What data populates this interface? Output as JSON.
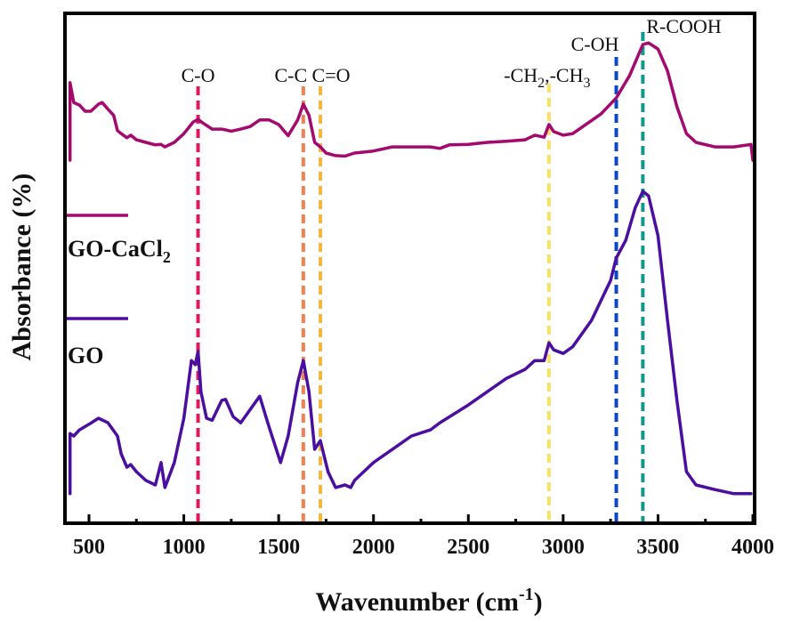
{
  "chart_data": {
    "type": "line",
    "title": "",
    "xlabel": "Wavenumber (cm",
    "xlabel_sup": "-1",
    "xlabel_close": ")",
    "ylabel": "Absorbance (%)",
    "xlim": [
      370,
      4010
    ],
    "ylim": [
      0,
      100
    ],
    "y_ticks_shown": false,
    "grid": false,
    "x_ticks": [
      500,
      1000,
      1500,
      2000,
      2500,
      3000,
      3500,
      4000
    ],
    "x_tick_labels": [
      "500",
      "1000",
      "1500",
      "2000",
      "2500",
      "3000",
      "3500",
      "4000"
    ],
    "x_minor_ticks": [
      750,
      1250,
      1750,
      2250,
      2750,
      3250,
      3750
    ],
    "legend": {
      "placement": "left",
      "entries": [
        {
          "name": "GO-CaCl",
          "sub": "2",
          "color": "#a3096f"
        },
        {
          "name": "GO",
          "sub": "",
          "color": "#4a0fa0"
        }
      ]
    },
    "annotations": [
      {
        "label": "C-O",
        "x": 1075,
        "color": "#e8155c"
      },
      {
        "label": "C-C",
        "x": 1630,
        "color": "#f08050"
      },
      {
        "label": "C=O",
        "x": 1720,
        "color": "#f5b63c"
      },
      {
        "label": "-CH",
        "sub1": "2",
        "mid": ",-CH",
        "sub2": "3",
        "x": 2925,
        "color": "#f9e163"
      },
      {
        "label": "C-OH",
        "x": 3280,
        "color": "#0b49c4"
      },
      {
        "label": "R-COOH",
        "x": 3420,
        "color": "#10988a"
      }
    ],
    "series": [
      {
        "name": "GO-CaCl2",
        "color": "#a3096f",
        "x": [
          400,
          400,
          420,
          450,
          480,
          510,
          550,
          570,
          600,
          630,
          650,
          670,
          700,
          720,
          750,
          800,
          850,
          880,
          900,
          950,
          1000,
          1050,
          1075,
          1100,
          1150,
          1200,
          1250,
          1300,
          1350,
          1400,
          1450,
          1500,
          1550,
          1600,
          1630,
          1660,
          1690,
          1720,
          1750,
          1800,
          1850,
          1900,
          2000,
          2100,
          2200,
          2300,
          2350,
          2400,
          2500,
          2600,
          2700,
          2800,
          2850,
          2900,
          2925,
          2950,
          3000,
          3050,
          3100,
          3200,
          3280,
          3350,
          3420,
          3450,
          3500,
          3550,
          3600,
          3650,
          3700,
          3800,
          3900,
          3990,
          4000
        ],
        "y": [
          71.2,
          86.4,
          82.5,
          82.0,
          80.8,
          80.8,
          82.2,
          82.5,
          81.2,
          80.0,
          77.0,
          76.4,
          75.6,
          76.1,
          75.2,
          74.7,
          74.2,
          74.3,
          73.8,
          74.7,
          76.4,
          78.7,
          79.2,
          78.5,
          77.3,
          77.3,
          76.9,
          77.3,
          77.8,
          79.1,
          79.1,
          78.2,
          76.0,
          79.1,
          82.2,
          80.0,
          74.7,
          73.8,
          72.6,
          72.1,
          72.0,
          72.6,
          73.0,
          73.8,
          73.8,
          73.8,
          73.5,
          74.2,
          74.3,
          74.7,
          74.9,
          75.2,
          76.1,
          75.7,
          78.2,
          76.8,
          76.1,
          76.4,
          77.7,
          80.3,
          83.4,
          87.8,
          93.9,
          94.2,
          93.0,
          88.7,
          81.7,
          76.4,
          74.7,
          73.8,
          73.8,
          74.3,
          71.2
        ]
      },
      {
        "name": "GO",
        "color": "#4a0fa0",
        "x": [
          400,
          400,
          420,
          450,
          500,
          550,
          600,
          650,
          670,
          700,
          720,
          750,
          800,
          850,
          880,
          900,
          950,
          1000,
          1040,
          1060,
          1075,
          1090,
          1120,
          1150,
          1200,
          1220,
          1260,
          1300,
          1350,
          1400,
          1450,
          1510,
          1550,
          1600,
          1630,
          1660,
          1690,
          1720,
          1760,
          1800,
          1850,
          1880,
          1900,
          2000,
          2100,
          2200,
          2300,
          2350,
          2500,
          2600,
          2700,
          2800,
          2850,
          2900,
          2925,
          2950,
          3000,
          3050,
          3150,
          3250,
          3280,
          3330,
          3380,
          3420,
          3450,
          3500,
          3550,
          3600,
          3650,
          3700,
          3800,
          3900,
          3990
        ],
        "y": [
          5.8,
          17.6,
          17.1,
          18.3,
          19.4,
          20.6,
          19.7,
          17.1,
          13.6,
          11.0,
          11.5,
          10.1,
          8.4,
          7.5,
          11.9,
          7.0,
          11.9,
          20.6,
          31.9,
          31.1,
          33.7,
          25.8,
          20.6,
          20.2,
          24.1,
          24.3,
          20.9,
          19.7,
          22.3,
          24.9,
          18.8,
          11.9,
          17.1,
          27.6,
          31.9,
          25.8,
          14.5,
          16.2,
          10.1,
          7.0,
          7.5,
          7.0,
          8.4,
          11.9,
          14.5,
          17.1,
          18.3,
          19.7,
          23.2,
          25.8,
          28.4,
          30.2,
          31.9,
          31.9,
          35.4,
          34.0,
          33.3,
          34.6,
          39.8,
          47.6,
          52.0,
          55.5,
          61.9,
          65.1,
          64.2,
          56.4,
          39.8,
          24.1,
          10.1,
          7.5,
          6.6,
          5.8,
          5.8
        ]
      }
    ]
  }
}
